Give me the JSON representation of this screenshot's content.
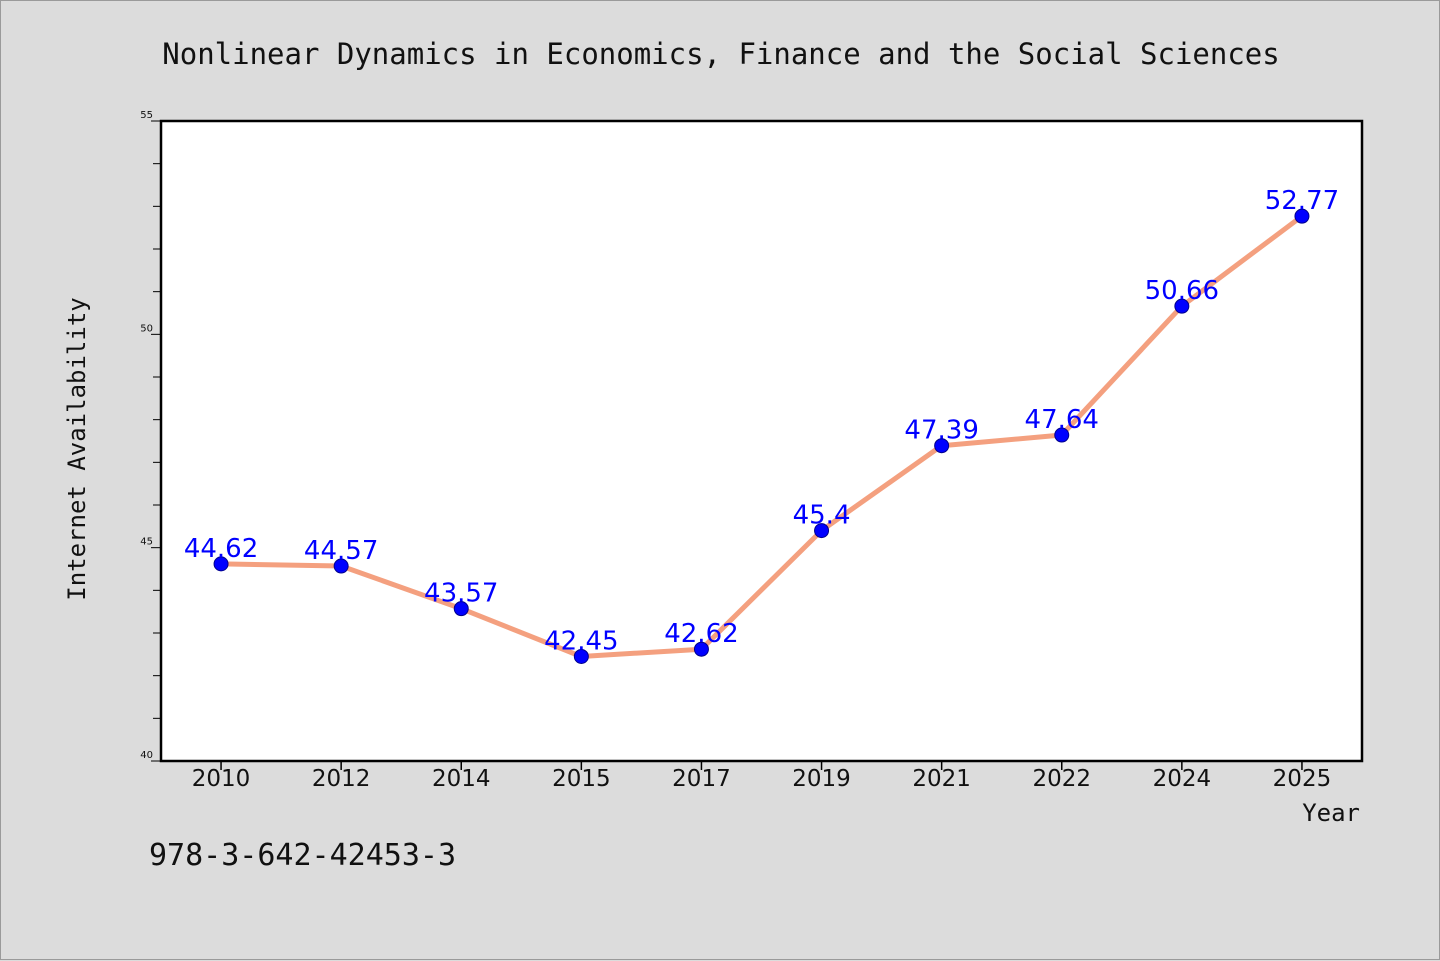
{
  "chart_data": {
    "type": "line",
    "title": "Nonlinear Dynamics in Economics, Finance and the Social Sciences",
    "xlabel": "Year",
    "ylabel": "Internet Availability",
    "categories": [
      "2010",
      "2012",
      "2014",
      "2015",
      "2017",
      "2019",
      "2021",
      "2022",
      "2024",
      "2025"
    ],
    "series": [
      {
        "values": [
          44.62,
          44.57,
          43.57,
          42.45,
          42.62,
          45.4,
          47.39,
          47.64,
          50.66,
          52.77
        ],
        "labels": [
          "44.62",
          "44.57",
          "43.57",
          "42.45",
          "42.62",
          "45.4",
          "47.39",
          "47.64",
          "50.66",
          "52.77"
        ],
        "line_color": "#f4a07f",
        "marker_color": "#0000ff"
      }
    ],
    "ylim": [
      40,
      55
    ],
    "yticks": [
      "40",
      "45",
      "50",
      "55"
    ],
    "grid": false,
    "legend": "none"
  },
  "footer_text": "978-3-642-42453-3"
}
